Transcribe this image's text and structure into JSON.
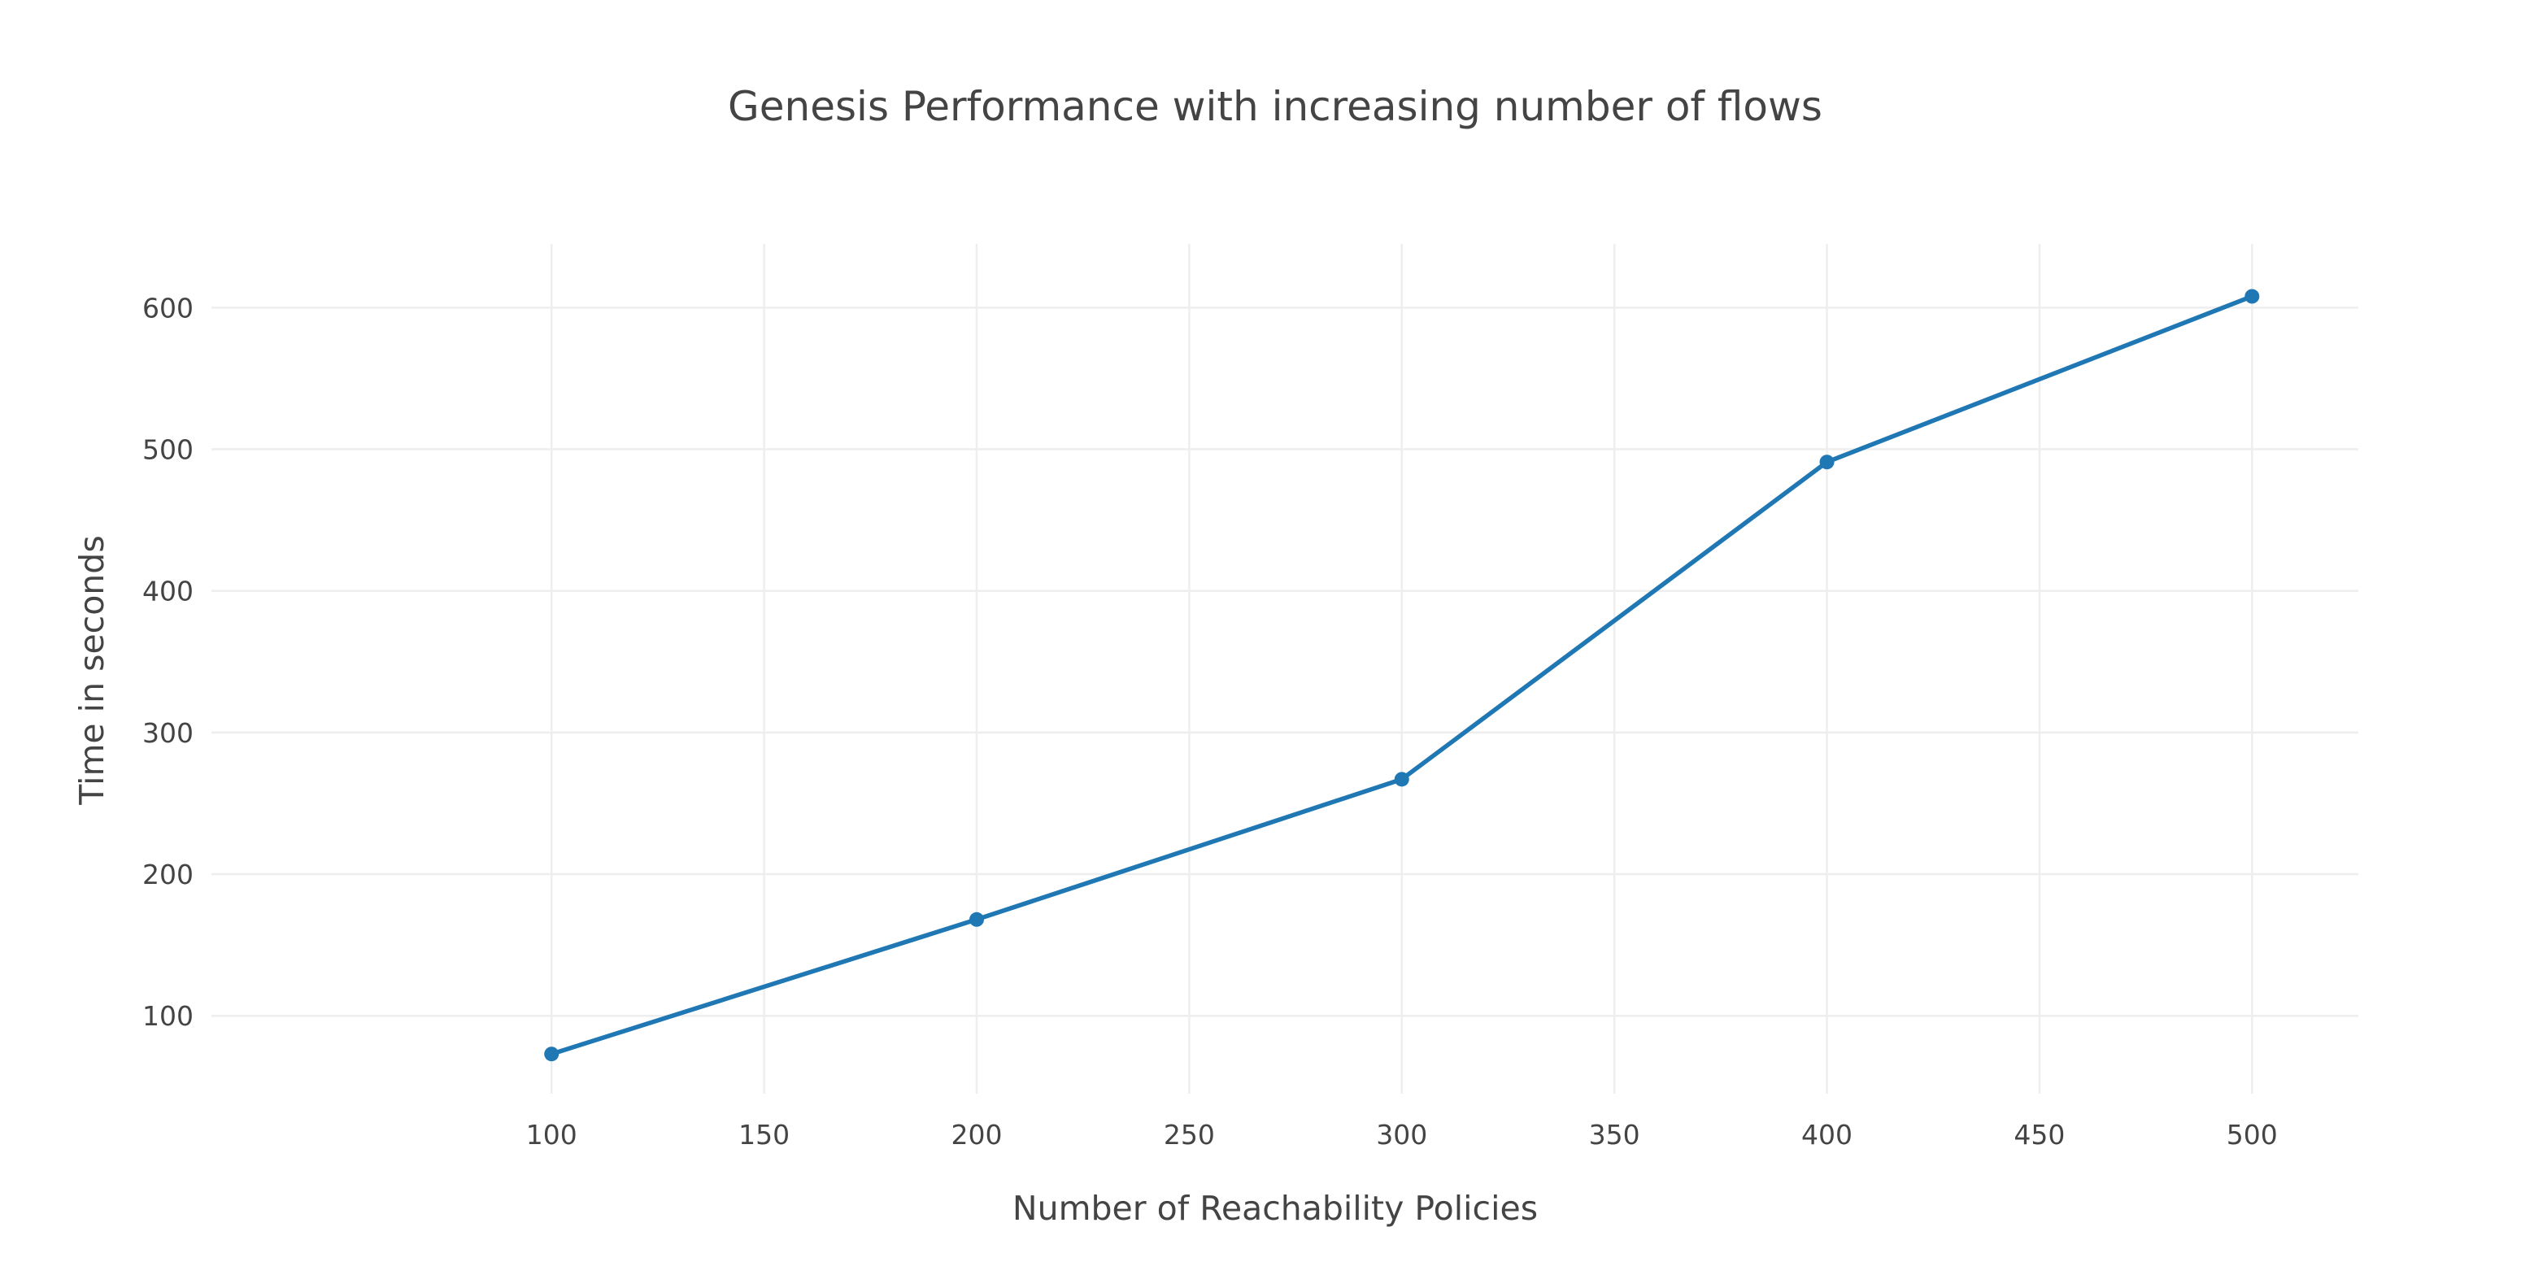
{
  "chart_data": {
    "type": "line",
    "title": "Genesis Performance with increasing number of flows",
    "xlabel": "Number of Reachability Policies",
    "ylabel": "Time in seconds",
    "x": [
      100,
      200,
      300,
      400,
      500
    ],
    "series": [
      {
        "values": [
          73,
          168,
          267,
          491,
          608
        ]
      }
    ],
    "xticks": [
      100,
      150,
      200,
      250,
      300,
      350,
      400,
      450,
      500
    ],
    "yticks": [
      100,
      200,
      300,
      400,
      500,
      600
    ],
    "xlim": [
      20,
      525
    ],
    "ylim": [
      45,
      645
    ],
    "grid": true,
    "color": "#1f77b4"
  }
}
